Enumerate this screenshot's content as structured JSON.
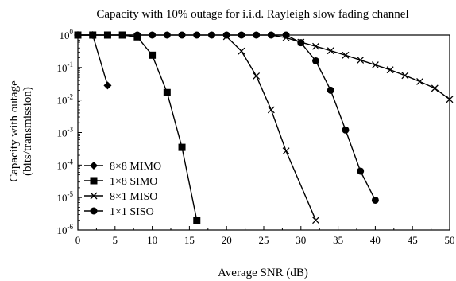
{
  "chart_data": {
    "type": "line",
    "title": "Capacity with 10% outage for i.i.d. Rayleigh slow fading channel",
    "xlabel": "Average SNR (dB)",
    "ylabel": [
      "Capacity with outage",
      "(bits/transmission)"
    ],
    "xlim": [
      0,
      50
    ],
    "ylim": [
      1e-06,
      1
    ],
    "yscale": "log",
    "x_ticks": [
      0,
      5,
      10,
      15,
      20,
      25,
      30,
      35,
      40,
      45,
      50
    ],
    "y_ticks": [
      {
        "value": 1,
        "base": "10",
        "exp": "0"
      },
      {
        "value": 0.1,
        "base": "10",
        "exp": "-1"
      },
      {
        "value": 0.01,
        "base": "10",
        "exp": "-2"
      },
      {
        "value": 0.001,
        "base": "10",
        "exp": "-3"
      },
      {
        "value": 0.0001,
        "base": "10",
        "exp": "-4"
      },
      {
        "value": 1e-05,
        "base": "10",
        "exp": "-5"
      },
      {
        "value": 1e-06,
        "base": "10",
        "exp": "-6"
      }
    ],
    "grid": false,
    "legend_position": "bottom-left",
    "series": [
      {
        "name": "8×8 MIMO",
        "marker": "diamond",
        "x": [
          0,
          2,
          4
        ],
        "y": [
          1,
          1,
          0.028
        ]
      },
      {
        "name": "1×8 SIMO",
        "marker": "square",
        "x": [
          0,
          2,
          4,
          6,
          8,
          10,
          12,
          14,
          16
        ],
        "y": [
          1,
          1,
          1,
          1,
          0.88,
          0.24,
          0.017,
          0.00035,
          2e-06
        ]
      },
      {
        "name": "8×1 MISO",
        "marker": "x",
        "x": [
          20,
          22,
          24,
          26,
          28,
          30,
          32
        ],
        "y": [
          0.9,
          0.32,
          0.055,
          0.005,
          0.00027,
          null,
          2e-06
        ],
        "x_tail": [
          28,
          30,
          32,
          34,
          36,
          38,
          40,
          42,
          44,
          46,
          48,
          50
        ],
        "y_tail": [
          0.83,
          0.6,
          0.45,
          0.33,
          0.24,
          0.17,
          0.12,
          0.085,
          0.057,
          0.037,
          0.023,
          0.0105
        ],
        "x_flat": [
          26,
          28
        ],
        "y_flat": [
          1,
          0.83
        ]
      },
      {
        "name": "1×1 SISO",
        "marker": "circle",
        "x": [
          0,
          2,
          4,
          6,
          8,
          10,
          12,
          14,
          16,
          18,
          20,
          22,
          24,
          26,
          28,
          30,
          32,
          34,
          36,
          38,
          40
        ],
        "y": [
          1,
          1,
          1,
          1,
          1,
          1,
          1,
          1,
          1,
          1,
          1,
          1,
          1,
          1,
          1,
          0.58,
          0.16,
          0.02,
          0.0012,
          6.5e-05,
          8.3e-06
        ]
      }
    ]
  }
}
